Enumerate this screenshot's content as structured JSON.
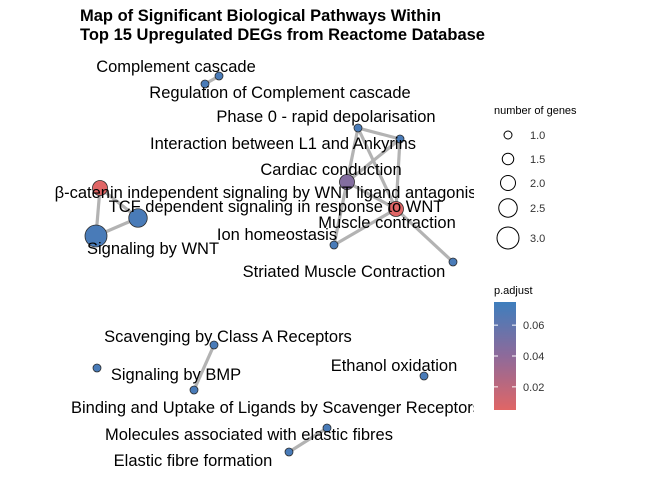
{
  "chart_data": {
    "type": "network",
    "title": [
      "Map of Significant Biological Pathways Within",
      "Top 15 Upregulated DEGs from Reactome Database"
    ],
    "nodes": [
      {
        "id": "complement",
        "label": "Complement cascade",
        "genes": 1,
        "p_adjust": 0.07
      },
      {
        "id": "reg_complement",
        "label": "Regulation of Complement cascade",
        "genes": 1,
        "p_adjust": 0.07
      },
      {
        "id": "phase0",
        "label": "Phase 0 - rapid depolarisation",
        "genes": 1,
        "p_adjust": 0.07
      },
      {
        "id": "l1_ankyrins",
        "label": "Interaction between L1 and Ankyrins",
        "genes": 1,
        "p_adjust": 0.07
      },
      {
        "id": "cardiac",
        "label": "Cardiac conduction",
        "genes": 2,
        "p_adjust": 0.045
      },
      {
        "id": "wnt_antag",
        "label": "β-catenin independent signaling by WNT ligand antagonists",
        "genes": 2,
        "p_adjust": 0.005
      },
      {
        "id": "tcf_wnt",
        "label": "TCF dependent signaling in response to WNT",
        "genes": 2.5,
        "p_adjust": 0.07
      },
      {
        "id": "muscle_contraction",
        "label": "Muscle contraction",
        "genes": 2,
        "p_adjust": 0.005
      },
      {
        "id": "ion",
        "label": "Ion homeostasis",
        "genes": 1,
        "p_adjust": 0.07
      },
      {
        "id": "wnt",
        "label": "Signaling by WNT",
        "genes": 3,
        "p_adjust": 0.07
      },
      {
        "id": "striated",
        "label": "Striated Muscle Contraction",
        "genes": 1,
        "p_adjust": 0.07
      },
      {
        "id": "scav_a",
        "label": "Scavenging by Class A Receptors",
        "genes": 1,
        "p_adjust": 0.07
      },
      {
        "id": "bmp",
        "label": "Signaling by BMP",
        "genes": 1,
        "p_adjust": 0.07
      },
      {
        "id": "ethanol",
        "label": "Ethanol oxidation",
        "genes": 1,
        "p_adjust": 0.07
      },
      {
        "id": "binding",
        "label": "Binding and Uptake of Ligands by Scavenger Receptors",
        "genes": 1,
        "p_adjust": 0.07
      },
      {
        "id": "elastic_mol",
        "label": "Molecules associated with elastic fibres",
        "genes": 1,
        "p_adjust": 0.07
      },
      {
        "id": "elastic_form",
        "label": "Elastic fibre formation",
        "genes": 1,
        "p_adjust": 0.07
      }
    ],
    "edges": [
      [
        "complement",
        "reg_complement"
      ],
      [
        "phase0",
        "l1_ankyrins"
      ],
      [
        "phase0",
        "cardiac"
      ],
      [
        "l1_ankyrins",
        "cardiac"
      ],
      [
        "phase0",
        "muscle_contraction"
      ],
      [
        "l1_ankyrins",
        "muscle_contraction"
      ],
      [
        "cardiac",
        "muscle_contraction"
      ],
      [
        "cardiac",
        "ion"
      ],
      [
        "muscle_contraction",
        "ion"
      ],
      [
        "muscle_contraction",
        "striated"
      ],
      [
        "wnt_antag",
        "tcf_wnt"
      ],
      [
        "wnt_antag",
        "wnt"
      ],
      [
        "tcf_wnt",
        "wnt"
      ],
      [
        "scav_a",
        "binding"
      ],
      [
        "elastic_mol",
        "elastic_form"
      ]
    ],
    "legend_size": {
      "title": "number of genes",
      "labels": [
        "1.0",
        "1.5",
        "2.0",
        "2.5",
        "3.0"
      ],
      "values": [
        1.0,
        1.5,
        2.0,
        2.5,
        3.0
      ]
    },
    "legend_color": {
      "title": "p.adjust",
      "labels": [
        "0.06",
        "0.04",
        "0.02"
      ],
      "values": [
        0.06,
        0.04,
        0.02
      ],
      "range": [
        0.005,
        0.075
      ],
      "low_color": "#e06666",
      "mid_color": "#8e6a9a",
      "high_color": "#3e7ebd"
    },
    "edge_color": "#b3b3b3",
    "legend_placement": "right"
  }
}
